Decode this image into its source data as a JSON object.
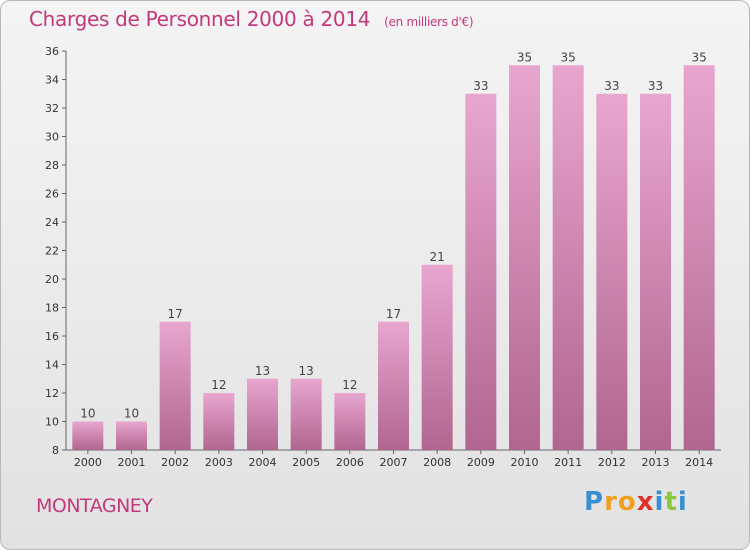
{
  "title": "Charges de Personnel 2000 à 2014",
  "subtitle": "(en milliers d'€)",
  "town": "MONTAGNEY",
  "logo": {
    "letters": [
      "P",
      "r",
      "o",
      "x",
      "i",
      "t",
      "i"
    ],
    "colors": [
      "#3a8fd0",
      "#f0a020",
      "#f0a020",
      "#e0302a",
      "#3a8fd0",
      "#8cc63f",
      "#3a8fd0"
    ]
  },
  "colors": {
    "bar_top": "#e8a6cf",
    "bar_bottom": "#b0668f",
    "accent": "#c2397c",
    "grid": "#d8d8d8"
  },
  "chart_data": {
    "type": "bar",
    "categories": [
      "2000",
      "2001",
      "2002",
      "2003",
      "2004",
      "2005",
      "2006",
      "2007",
      "2008",
      "2009",
      "2010",
      "2011",
      "2012",
      "2013",
      "2014"
    ],
    "values": [
      10,
      10,
      17,
      12,
      13,
      13,
      12,
      17,
      21,
      33,
      35,
      35,
      33,
      33,
      35
    ],
    "title": "Charges de Personnel 2000 à 2014",
    "subtitle": "(en milliers d'€)",
    "xlabel": "",
    "ylabel": "",
    "ylim": [
      8,
      36
    ],
    "yticks": [
      8,
      10,
      12,
      14,
      16,
      18,
      20,
      22,
      24,
      26,
      28,
      30,
      32,
      34,
      36
    ],
    "grid": false,
    "data_labels": true
  }
}
